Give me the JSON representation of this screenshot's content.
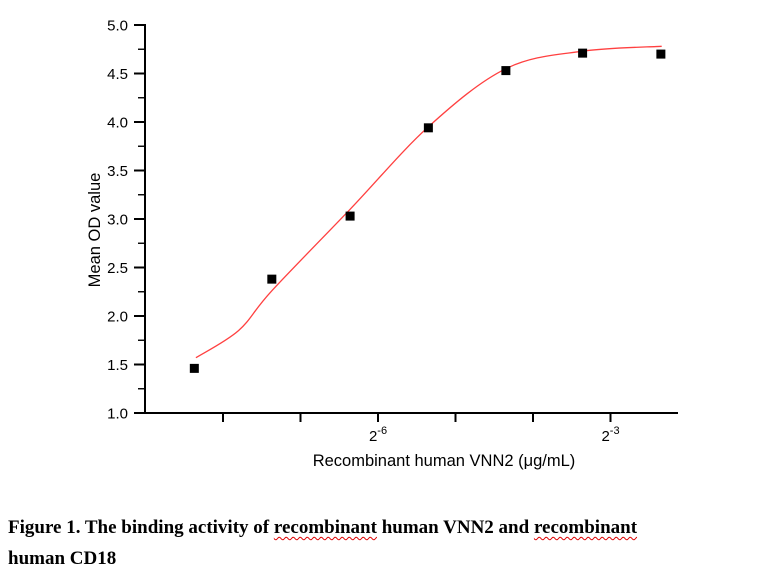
{
  "chart_data": {
    "type": "scatter",
    "title": "",
    "xlabel": "Recombinant human VNN2 (μg/mL)",
    "ylabel": "Mean OD value",
    "x_scale": "log2",
    "ylim": [
      1.0,
      5.0
    ],
    "y_tick_step": 0.5,
    "y_minor_step": 0.25,
    "grid": "off",
    "legend": "none",
    "x_ticks_log2": [
      -8,
      -7,
      -6,
      -5,
      -4,
      -3
    ],
    "x_labeled_ticks": [
      {
        "log2": -6,
        "base": "2",
        "exponent": "-6"
      },
      {
        "log2": -3,
        "base": "2",
        "exponent": "-3"
      }
    ],
    "series": [
      {
        "name": "Mean OD value",
        "type": "scatter",
        "marker": "square",
        "color": "#000000",
        "points": [
          {
            "x_ugml": 0.003,
            "log2x": -8.37,
            "od": 1.46
          },
          {
            "x_ugml": 0.006,
            "log2x": -7.37,
            "od": 2.38
          },
          {
            "x_ugml": 0.012,
            "log2x": -6.36,
            "od": 3.03
          },
          {
            "x_ugml": 0.0245,
            "log2x": -5.35,
            "od": 3.94
          },
          {
            "x_ugml": 0.049,
            "log2x": -4.35,
            "od": 4.53
          },
          {
            "x_ugml": 0.098,
            "log2x": -3.36,
            "od": 4.71
          },
          {
            "x_ugml": 0.196,
            "log2x": -2.35,
            "od": 4.7
          }
        ]
      },
      {
        "name": "sigmoidal-fit-curve",
        "type": "line",
        "color": "#ff4040",
        "points": [
          {
            "log2x": -8.35,
            "od": 1.57
          },
          {
            "log2x": -7.8,
            "od": 1.85
          },
          {
            "log2x": -7.37,
            "od": 2.26
          },
          {
            "log2x": -6.36,
            "od": 3.1
          },
          {
            "log2x": -5.35,
            "od": 3.95
          },
          {
            "log2x": -4.35,
            "od": 4.55
          },
          {
            "log2x": -3.36,
            "od": 4.73
          },
          {
            "log2x": -2.34,
            "od": 4.78
          }
        ]
      }
    ]
  },
  "caption": {
    "prefix": "Figure 1. The binding activity of ",
    "misspelled1": "recombinant",
    "middle": " human VNN2 and ",
    "misspelled2": "recombinant",
    "line2": "human CD18"
  },
  "colors": {
    "curve": "#ff4040",
    "marker": "#000000",
    "axis": "#000000",
    "squiggle": "#dd0000"
  }
}
